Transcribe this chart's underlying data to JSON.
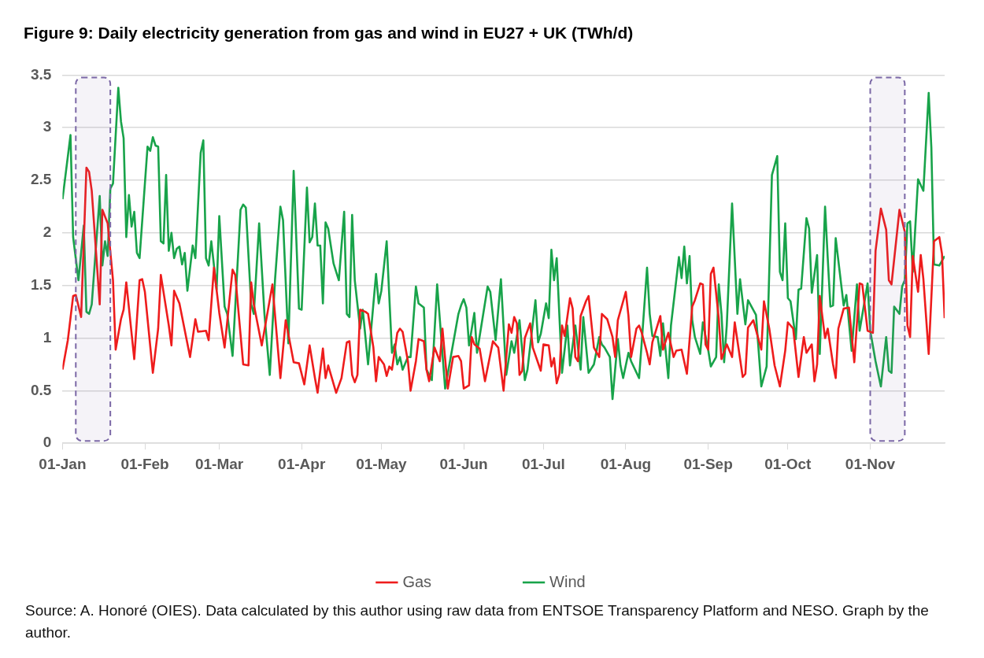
{
  "chart_data": {
    "type": "line",
    "title": "Figure 9: Daily electricity generation from gas and wind in EU27 + UK (TWh/d)",
    "annotations": [
      "Source: A. Honoré (OIES). Data calculated by this author using raw data from ENTSOE Transparency Platform and NESO. Graph by the author."
    ],
    "xlim": [
      "--01-01",
      "--11-29"
    ],
    "xticks": [
      {
        "value": "--01-01",
        "label": "01-Jan"
      },
      {
        "value": "--02-01",
        "label": "01-Feb"
      },
      {
        "value": "--03-01",
        "label": "01-Mar"
      },
      {
        "value": "--04-01",
        "label": "01-Apr"
      },
      {
        "value": "--05-01",
        "label": "01-May"
      },
      {
        "value": "--06-01",
        "label": "01-Jun"
      },
      {
        "value": "--07-01",
        "label": "01-Jul"
      },
      {
        "value": "--08-01",
        "label": "01-Aug"
      },
      {
        "value": "--09-01",
        "label": "01-Sep"
      },
      {
        "value": "--10-01",
        "label": "01-Oct"
      },
      {
        "value": "--11-01",
        "label": "01-Nov"
      }
    ],
    "ylim": [
      0,
      3.5
    ],
    "yticks": [
      0,
      0.5,
      1,
      1.5,
      2,
      2.5,
      3,
      3.5
    ],
    "grid": "y",
    "legend": "bottom",
    "marker": "none",
    "line_style": "solid",
    "bands": [
      {
        "axis": "x",
        "from": "--01-06",
        "to": "--01-19",
        "color": "#7b68a6"
      },
      {
        "axis": "x",
        "from": "--11-01",
        "to": "--11-14",
        "color": "#7b68a6"
      }
    ],
    "series": [
      {
        "name": "Gas",
        "color": "#ee1c1c",
        "x": [
          "--01-01",
          "--01-03",
          "--01-05",
          "--01-06",
          "--01-08",
          "--01-10",
          "--01-11",
          "--01-12",
          "--01-15",
          "--01-16",
          "--01-18",
          "--01-20",
          "--01-21",
          "--01-23",
          "--01-24",
          "--01-25",
          "--01-28",
          "--01-30",
          "--01-31",
          "--02-01",
          "--02-04",
          "--02-06",
          "--02-07",
          "--02-10",
          "--02-11",
          "--02-12",
          "--02-14",
          "--02-18",
          "--02-20",
          "--02-21",
          "--02-24",
          "--02-25",
          "--02-27",
          "--03-01",
          "--03-03",
          "--03-06",
          "--03-07",
          "--03-10",
          "--03-12",
          "--03-13",
          "--03-14",
          "--03-17",
          "--03-21",
          "--03-24",
          "--03-26",
          "--03-29",
          "--03-31",
          "--04-02",
          "--04-04",
          "--04-06",
          "--04-07",
          "--04-09",
          "--04-10",
          "--04-11",
          "--04-14",
          "--04-16",
          "--04-18",
          "--04-19",
          "--04-20",
          "--04-21",
          "--04-22",
          "--04-23",
          "--04-25",
          "--04-26",
          "--04-28",
          "--04-29",
          "--04-30",
          "--05-02",
          "--05-03",
          "--05-04",
          "--05-05",
          "--05-07",
          "--05-08",
          "--05-09",
          "--05-11",
          "--05-12",
          "--05-14",
          "--05-15",
          "--05-17",
          "--05-18",
          "--05-19",
          "--05-21",
          "--05-23",
          "--05-24",
          "--05-26",
          "--05-28",
          "--05-30",
          "--05-31",
          "--06-01",
          "--06-03",
          "--06-04",
          "--06-05",
          "--06-07",
          "--06-09",
          "--06-12",
          "--06-14",
          "--06-16",
          "--06-18",
          "--06-19",
          "--06-20",
          "--06-21",
          "--06-22",
          "--06-23",
          "--06-24",
          "--06-26",
          "--06-27",
          "--06-30",
          "--07-01",
          "--07-03",
          "--07-04",
          "--07-05",
          "--07-06",
          "--07-07",
          "--07-08",
          "--07-09",
          "--07-11",
          "--07-12",
          "--07-13",
          "--07-14",
          "--07-15",
          "--07-17",
          "--07-18",
          "--07-20",
          "--07-22",
          "--07-23",
          "--07-25",
          "--07-27",
          "--07-28",
          "--07-29",
          "--08-01",
          "--08-02",
          "--08-03",
          "--08-05",
          "--08-06",
          "--08-07",
          "--08-09",
          "--08-10",
          "--08-11",
          "--08-14",
          "--08-15",
          "--08-17",
          "--08-19",
          "--08-20",
          "--08-22",
          "--08-24",
          "--08-26",
          "--08-27",
          "--08-29",
          "--08-30",
          "--08-31",
          "--09-01",
          "--09-02",
          "--09-03",
          "--09-05",
          "--09-06",
          "--09-08",
          "--09-10",
          "--09-11",
          "--09-14",
          "--09-15",
          "--09-16",
          "--09-18",
          "--09-21",
          "--09-22",
          "--09-24",
          "--09-26",
          "--09-28",
          "--09-30",
          "--10-01",
          "--10-03",
          "--10-05",
          "--10-07",
          "--10-08",
          "--10-10",
          "--10-11",
          "--10-12",
          "--10-13",
          "--10-15",
          "--10-16",
          "--10-18",
          "--10-19",
          "--10-20",
          "--10-22",
          "--10-24",
          "--10-26",
          "--10-28",
          "--10-29",
          "--10-31",
          "--11-02",
          "--11-03",
          "--11-05",
          "--11-07",
          "--11-08",
          "--11-09",
          "--11-12",
          "--11-14",
          "--11-15",
          "--11-16",
          "--11-17",
          "--11-19",
          "--11-20",
          "--11-21",
          "--11-23",
          "--11-25",
          "--11-27",
          "--11-28",
          "--11-29"
        ],
        "values": [
          0.7,
          0.98,
          1.4,
          1.41,
          1.2,
          2.62,
          2.58,
          2.4,
          1.32,
          2.22,
          2.09,
          1.55,
          0.89,
          1.18,
          1.27,
          1.53,
          0.8,
          1.55,
          1.56,
          1.44,
          0.67,
          1.09,
          1.6,
          1.12,
          0.93,
          1.45,
          1.33,
          0.82,
          1.18,
          1.06,
          1.07,
          0.98,
          1.67,
          1.24,
          0.91,
          1.65,
          1.6,
          0.75,
          0.74,
          1.53,
          1.32,
          0.93,
          1.51,
          0.62,
          1.17,
          0.77,
          0.76,
          0.56,
          0.93,
          0.62,
          0.48,
          0.9,
          0.62,
          0.74,
          0.48,
          0.62,
          0.96,
          0.97,
          0.65,
          0.58,
          0.65,
          1.27,
          1.25,
          1.23,
          0.91,
          0.59,
          0.82,
          0.75,
          0.64,
          0.73,
          0.7,
          1.05,
          1.09,
          1.06,
          0.78,
          0.5,
          0.78,
          0.99,
          0.97,
          0.7,
          0.59,
          0.91,
          0.78,
          1.09,
          0.52,
          0.82,
          0.83,
          0.78,
          0.52,
          0.55,
          1.01,
          0.94,
          0.9,
          0.59,
          0.97,
          0.91,
          0.5,
          1.13,
          1.05,
          1.2,
          1.14,
          0.65,
          0.69,
          1.0,
          1.14,
          0.91,
          0.69,
          0.94,
          0.93,
          0.73,
          0.81,
          0.57,
          0.66,
          1.12,
          1.02,
          1.38,
          1.28,
          0.82,
          0.78,
          1.21,
          1.35,
          1.4,
          0.91,
          0.82,
          1.23,
          1.18,
          1.01,
          0.82,
          1.17,
          1.44,
          1.21,
          0.82,
          1.09,
          1.12,
          1.05,
          0.86,
          0.75,
          0.96,
          1.21,
          0.89,
          1.05,
          0.82,
          0.88,
          0.89,
          0.66,
          1.3,
          1.36,
          1.52,
          1.51,
          0.94,
          0.89,
          1.61,
          1.67,
          1.18,
          0.8,
          0.94,
          0.82,
          1.15,
          0.63,
          0.66,
          1.1,
          1.17,
          0.89,
          1.35,
          1.09,
          0.74,
          0.54,
          0.88,
          1.15,
          1.09,
          0.63,
          1.01,
          0.86,
          0.94,
          0.59,
          0.75,
          1.4,
          1.0,
          1.09,
          0.75,
          0.62,
          1.09,
          1.28,
          1.29,
          0.77,
          1.52,
          1.51,
          1.07,
          1.05,
          1.83,
          2.23,
          2.03,
          1.55,
          1.51,
          2.22,
          2.01,
          1.12,
          1.01,
          1.78,
          1.44,
          1.79,
          1.56,
          0.85,
          1.92,
          1.96,
          1.8,
          1.19
        ]
      },
      {
        "name": "Wind",
        "color": "#18a34a",
        "x": [
          "--01-01",
          "--01-04",
          "--01-05",
          "--01-07",
          "--01-09",
          "--01-10",
          "--01-11",
          "--01-12",
          "--01-15",
          "--01-16",
          "--01-17",
          "--01-18",
          "--01-19",
          "--01-20",
          "--01-22",
          "--01-23",
          "--01-24",
          "--01-25",
          "--01-26",
          "--01-27",
          "--01-28",
          "--01-29",
          "--01-30",
          "--02-02",
          "--02-03",
          "--02-04",
          "--02-05",
          "--02-06",
          "--02-07",
          "--02-08",
          "--02-09",
          "--02-10",
          "--02-11",
          "--02-12",
          "--02-13",
          "--02-14",
          "--02-15",
          "--02-16",
          "--02-17",
          "--02-19",
          "--02-20",
          "--02-22",
          "--02-23",
          "--02-24",
          "--02-25",
          "--02-26",
          "--02-28",
          "--03-01",
          "--03-03",
          "--03-04",
          "--03-06",
          "--03-09",
          "--03-10",
          "--03-11",
          "--03-13",
          "--03-14",
          "--03-16",
          "--03-18",
          "--03-20",
          "--03-22",
          "--03-24",
          "--03-25",
          "--03-27",
          "--03-29",
          "--03-31",
          "--04-01",
          "--04-03",
          "--04-04",
          "--04-05",
          "--04-06",
          "--04-07",
          "--04-08",
          "--04-09",
          "--04-10",
          "--04-11",
          "--04-13",
          "--04-15",
          "--04-17",
          "--04-18",
          "--04-19",
          "--04-20",
          "--04-21",
          "--04-23",
          "--04-24",
          "--04-26",
          "--04-29",
          "--04-30",
          "--05-01",
          "--05-03",
          "--05-05",
          "--05-06",
          "--05-07",
          "--05-08",
          "--05-09",
          "--05-11",
          "--05-12",
          "--05-14",
          "--05-15",
          "--05-17",
          "--05-18",
          "--05-20",
          "--05-22",
          "--05-25",
          "--05-30",
          "--05-31",
          "--06-01",
          "--06-02",
          "--06-03",
          "--06-05",
          "--06-06",
          "--06-10",
          "--06-11",
          "--06-13",
          "--06-15",
          "--06-17",
          "--06-19",
          "--06-20",
          "--06-22",
          "--06-24",
          "--06-25",
          "--06-28",
          "--06-29",
          "--06-30",
          "--07-02",
          "--07-03",
          "--07-04",
          "--07-05",
          "--07-06",
          "--07-08",
          "--07-10",
          "--07-11",
          "--07-13",
          "--07-15",
          "--07-16",
          "--07-18",
          "--07-20",
          "--07-22",
          "--07-23",
          "--07-24",
          "--07-26",
          "--07-27",
          "--07-29",
          "--07-30",
          "--07-31",
          "--08-02",
          "--08-03",
          "--08-06",
          "--08-07",
          "--08-09",
          "--08-10",
          "--08-11",
          "--08-13",
          "--08-14",
          "--08-15",
          "--08-17",
          "--08-18",
          "--08-21",
          "--08-22",
          "--08-23",
          "--08-24",
          "--08-25",
          "--08-26",
          "--08-27",
          "--08-29",
          "--08-30",
          "--09-01",
          "--09-02",
          "--09-04",
          "--09-05",
          "--09-06",
          "--09-07",
          "--09-08",
          "--09-10",
          "--09-12",
          "--09-13",
          "--09-15",
          "--09-16",
          "--09-19",
          "--09-21",
          "--09-23",
          "--09-25",
          "--09-27",
          "--09-28",
          "--09-29",
          "--09-30",
          "--10-01",
          "--10-02",
          "--10-04",
          "--10-05",
          "--10-06",
          "--10-08",
          "--10-09",
          "--10-10",
          "--10-12",
          "--10-13",
          "--10-15",
          "--10-16",
          "--10-17",
          "--10-18",
          "--10-19",
          "--10-22",
          "--10-23",
          "--10-25",
          "--10-27",
          "--10-28",
          "--10-31",
          "--11-01",
          "--11-03",
          "--11-05",
          "--11-07",
          "--11-08",
          "--11-09",
          "--11-10",
          "--11-12",
          "--11-13",
          "--11-14",
          "--11-15",
          "--11-16",
          "--11-17",
          "--11-19",
          "--11-21",
          "--11-23",
          "--11-24",
          "--11-25",
          "--11-27",
          "--11-29"
        ],
        "values": [
          2.32,
          2.93,
          1.96,
          1.55,
          2.07,
          1.25,
          1.23,
          1.32,
          2.35,
          1.69,
          1.92,
          1.78,
          2.42,
          2.47,
          3.38,
          3.06,
          2.9,
          1.96,
          2.36,
          2.06,
          2.2,
          1.81,
          1.76,
          2.82,
          2.78,
          2.91,
          2.83,
          2.82,
          1.92,
          1.9,
          2.55,
          1.83,
          2.0,
          1.76,
          1.85,
          1.87,
          1.7,
          1.81,
          1.45,
          1.88,
          1.76,
          2.76,
          2.88,
          1.76,
          1.69,
          1.92,
          1.46,
          2.16,
          1.3,
          1.23,
          0.83,
          2.22,
          2.27,
          2.24,
          1.32,
          1.23,
          2.09,
          1.23,
          0.65,
          1.56,
          2.25,
          2.12,
          0.95,
          2.59,
          1.28,
          1.27,
          2.43,
          1.91,
          1.96,
          2.28,
          1.88,
          1.88,
          1.33,
          2.1,
          2.04,
          1.71,
          1.55,
          2.2,
          1.23,
          1.2,
          2.17,
          1.55,
          1.09,
          1.27,
          0.75,
          1.61,
          1.33,
          1.45,
          1.92,
          0.86,
          0.94,
          0.75,
          0.82,
          0.7,
          0.82,
          0.82,
          1.49,
          1.33,
          1.29,
          0.7,
          0.6,
          1.51,
          0.52,
          1.23,
          1.31,
          1.37,
          1.29,
          0.93,
          1.24,
          0.86,
          1.49,
          1.44,
          0.98,
          1.56,
          0.65,
          0.97,
          0.86,
          1.17,
          0.6,
          0.7,
          1.36,
          0.96,
          1.04,
          1.33,
          1.19,
          1.84,
          1.55,
          1.76,
          0.67,
          1.12,
          0.74,
          1.12,
          0.7,
          1.2,
          0.67,
          0.75,
          1.01,
          0.94,
          0.91,
          0.82,
          0.42,
          0.99,
          0.74,
          0.62,
          0.86,
          0.78,
          0.62,
          0.96,
          1.67,
          1.23,
          1.02,
          1.01,
          0.83,
          1.14,
          0.62,
          1.12,
          1.77,
          1.57,
          1.87,
          1.52,
          1.78,
          1.17,
          1.01,
          0.85,
          1.15,
          0.89,
          0.73,
          0.82,
          1.51,
          1.23,
          0.77,
          1.12,
          2.28,
          1.23,
          1.56,
          1.13,
          1.36,
          1.22,
          0.54,
          0.73,
          2.55,
          2.73,
          1.63,
          1.55,
          2.09,
          1.38,
          1.35,
          0.99,
          1.46,
          1.47,
          2.14,
          2.04,
          1.43,
          1.79,
          0.85,
          2.25,
          1.76,
          1.3,
          1.31,
          1.95,
          1.31,
          1.41,
          0.88,
          1.51,
          1.07,
          1.52,
          1.07,
          0.78,
          0.54,
          1.01,
          0.69,
          0.67,
          1.3,
          1.23,
          1.49,
          1.55,
          2.09,
          2.11,
          1.63,
          2.51,
          2.4,
          3.33,
          2.81,
          1.7,
          1.69,
          1.78
        ]
      }
    ]
  }
}
